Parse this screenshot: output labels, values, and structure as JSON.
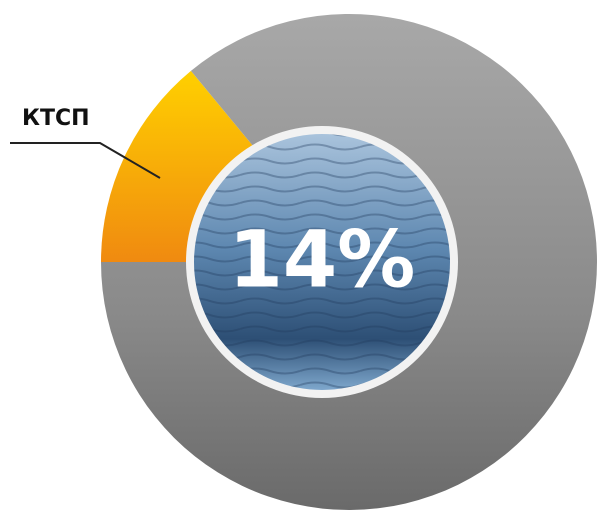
{
  "chart_data": {
    "type": "donut",
    "categories": [
      "КТСП",
      null
    ],
    "values": [
      14,
      86
    ],
    "value_labels": [
      "14%",
      null
    ],
    "colors": [
      "#f7a000",
      "#8e8e8e"
    ]
  }
}
